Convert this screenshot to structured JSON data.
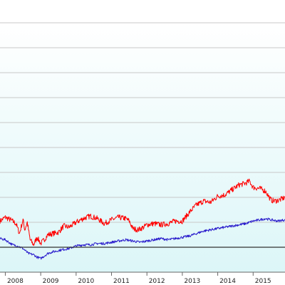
{
  "chart_data": {
    "type": "line",
    "title": "",
    "xlabel": "",
    "ylabel": "",
    "x_tick_labels": [
      "2008",
      "2009",
      "2010",
      "2011",
      "2012",
      "2013",
      "2014",
      "2015"
    ],
    "x_tick_years": [
      2008,
      2009,
      2010,
      2011,
      2012,
      2013,
      2014,
      2015
    ],
    "xlim": [
      2007.85,
      2015.9
    ],
    "ylim": [
      0,
      100
    ],
    "grid": true,
    "baseline_value": 10,
    "colors": {
      "red_series": "#ff0000",
      "blue_series": "#2a1ccc",
      "grid": "#c8c8c8",
      "baseline": "#333333",
      "background_top": "#ffffff",
      "background_bottom": "#dcf6f8"
    },
    "series": [
      {
        "color": "#ff0000",
        "x": [
          2007.85,
          2008.0,
          2008.15,
          2008.3,
          2008.4,
          2008.5,
          2008.55,
          2008.62,
          2008.7,
          2008.8,
          2008.9,
          2009.0,
          2009.1,
          2009.2,
          2009.35,
          2009.5,
          2009.65,
          2009.8,
          2010.0,
          2010.2,
          2010.4,
          2010.6,
          2010.8,
          2011.0,
          2011.2,
          2011.4,
          2011.5,
          2011.6,
          2011.75,
          2011.9,
          2012.0,
          2012.2,
          2012.4,
          2012.6,
          2012.8,
          2013.0,
          2013.2,
          2013.4,
          2013.6,
          2013.8,
          2014.0,
          2014.2,
          2014.4,
          2014.6,
          2014.75,
          2014.9,
          2015.0,
          2015.2,
          2015.35,
          2015.5,
          2015.6,
          2015.75,
          2015.9
        ],
        "y": [
          20.5,
          22.0,
          21.0,
          19.5,
          15.5,
          21.0,
          17.0,
          20.0,
          13.0,
          11.0,
          14.0,
          11.5,
          13.0,
          15.0,
          15.5,
          16.0,
          18.5,
          18.0,
          20.0,
          21.5,
          22.5,
          21.5,
          19.5,
          21.0,
          22.0,
          21.5,
          20.5,
          17.5,
          17.0,
          18.0,
          19.0,
          19.5,
          19.0,
          19.5,
          20.5,
          20.5,
          24.0,
          27.0,
          28.5,
          28.0,
          30.5,
          31.0,
          33.0,
          35.0,
          35.5,
          36.5,
          34.0,
          33.5,
          32.5,
          29.0,
          28.5,
          29.0,
          30.0
        ]
      },
      {
        "color": "#2a1ccc",
        "x": [
          2007.85,
          2008.0,
          2008.1,
          2008.2,
          2008.35,
          2008.5,
          2008.65,
          2008.8,
          2008.9,
          2009.0,
          2009.1,
          2009.2,
          2009.3,
          2009.45,
          2009.6,
          2009.8,
          2010.0,
          2010.2,
          2010.4,
          2010.6,
          2010.8,
          2011.0,
          2011.2,
          2011.4,
          2011.6,
          2011.8,
          2012.0,
          2012.2,
          2012.4,
          2012.6,
          2012.8,
          2013.0,
          2013.2,
          2013.4,
          2013.6,
          2013.8,
          2014.0,
          2014.2,
          2014.4,
          2014.6,
          2014.8,
          2015.0,
          2015.2,
          2015.35,
          2015.5,
          2015.7,
          2015.9
        ],
        "y": [
          13.5,
          13.0,
          12.0,
          11.0,
          10.5,
          9.5,
          7.5,
          7.0,
          6.0,
          5.5,
          6.5,
          7.5,
          8.0,
          8.5,
          9.0,
          9.5,
          10.5,
          11.0,
          11.0,
          11.5,
          11.5,
          12.0,
          12.5,
          13.0,
          12.5,
          12.0,
          12.5,
          13.0,
          13.5,
          13.0,
          13.5,
          14.0,
          14.5,
          15.5,
          16.5,
          17.0,
          17.5,
          18.0,
          18.5,
          19.0,
          19.5,
          20.5,
          21.0,
          21.5,
          21.0,
          20.5,
          21.0
        ]
      }
    ]
  }
}
